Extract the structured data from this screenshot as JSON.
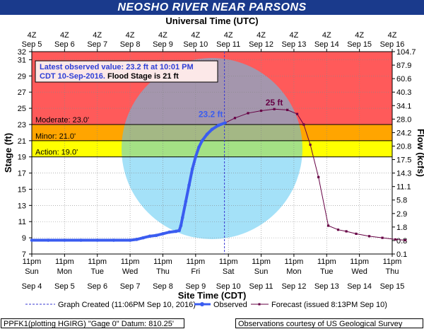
{
  "title": "NEOSHO RIVER NEAR PARSONS",
  "chart_data": {
    "type": "line",
    "top_axis_title": "Universal Time (UTC)",
    "top_ticks": [
      {
        "top": "4Z",
        "bottom": "Sep  5"
      },
      {
        "top": "4Z",
        "bottom": "Sep  6"
      },
      {
        "top": "4Z",
        "bottom": "Sep  7"
      },
      {
        "top": "4Z",
        "bottom": "Sep  8"
      },
      {
        "top": "4Z",
        "bottom": "Sep  9"
      },
      {
        "top": "4Z",
        "bottom": "Sep 10"
      },
      {
        "top": "4Z",
        "bottom": "Sep 11"
      },
      {
        "top": "4Z",
        "bottom": "Sep 12"
      },
      {
        "top": "4Z",
        "bottom": "Sep 13"
      },
      {
        "top": "4Z",
        "bottom": "Sep 14"
      },
      {
        "top": "4Z",
        "bottom": "Sep 15"
      },
      {
        "top": "4Z",
        "bottom": "Sep 16"
      }
    ],
    "bottom_axis_title": "Site Time (CDT)",
    "bottom_ticks": [
      {
        "time": "11pm",
        "day": "Sun",
        "date": "Sep 4"
      },
      {
        "time": "11pm",
        "day": "Mon",
        "date": "Sep 5"
      },
      {
        "time": "11pm",
        "day": "Tue",
        "date": "Sep 6"
      },
      {
        "time": "11pm",
        "day": "Wed",
        "date": "Sep 7"
      },
      {
        "time": "11pm",
        "day": "Thu",
        "date": "Sep 8"
      },
      {
        "time": "11pm",
        "day": "Fri",
        "date": "Sep 9"
      },
      {
        "time": "11pm",
        "day": "Sat",
        "date": "Sep 10"
      },
      {
        "time": "11pm",
        "day": "Sun",
        "date": "Sep 11"
      },
      {
        "time": "11pm",
        "day": "Mon",
        "date": "Sep 12"
      },
      {
        "time": "11pm",
        "day": "Tue",
        "date": "Sep 13"
      },
      {
        "time": "11pm",
        "day": "Wed",
        "date": "Sep 14"
      },
      {
        "time": "11pm",
        "day": "Thu",
        "date": "Sep 15"
      }
    ],
    "y_left_label": "Stage (ft)",
    "y_left_ticks": [
      7,
      9,
      11,
      13,
      15,
      17,
      19,
      21,
      23,
      25,
      27,
      29,
      31,
      32
    ],
    "ylim": [
      7,
      32
    ],
    "y_right_label": "Flow (kcfs)",
    "y_right_ticks": [
      {
        "stage": 7,
        "label": "0.1"
      },
      {
        "stage": 9,
        "label": "0.8"
      },
      {
        "stage": 11,
        "label": "1.8"
      },
      {
        "stage": 13,
        "label": "2.9"
      },
      {
        "stage": 15,
        "label": "5.8"
      },
      {
        "stage": 17,
        "label": "11.1"
      },
      {
        "stage": 19,
        "label": "14.3"
      },
      {
        "stage": 21,
        "label": "17.5"
      },
      {
        "stage": 23,
        "label": "20.8"
      },
      {
        "stage": 25,
        "label": "24.2"
      },
      {
        "stage": 27,
        "label": "28.0"
      },
      {
        "stage": 29,
        "label": "34.1"
      },
      {
        "stage": 31,
        "label": "40.3"
      },
      {
        "stage": 32,
        "label": "60.6"
      },
      {
        "stage": 33,
        "label": "87.9"
      },
      {
        "stage": 34,
        "label": "104.7"
      }
    ],
    "flood_categories": [
      {
        "name": "Action",
        "label": "Action: 19.0'",
        "from": 19,
        "to": 21,
        "color": "#ffff00"
      },
      {
        "name": "Minor",
        "label": "Minor: 21.0'",
        "from": 21,
        "to": 23,
        "color": "#ffa500"
      },
      {
        "name": "Moderate",
        "label": "Moderate: 23.0'",
        "from": 23,
        "to": 32,
        "color": "#ff5a5a"
      }
    ],
    "grid": true,
    "observed": {
      "name": "Observed",
      "color": "#3a5cf0",
      "points": [
        [
          0,
          8.7
        ],
        [
          0.5,
          8.7
        ],
        [
          1,
          8.7
        ],
        [
          1.5,
          8.7
        ],
        [
          2,
          8.7
        ],
        [
          2.5,
          8.7
        ],
        [
          3,
          8.7
        ],
        [
          3.2,
          8.8
        ],
        [
          3.4,
          9.0
        ],
        [
          3.6,
          9.2
        ],
        [
          3.8,
          9.3
        ],
        [
          4.0,
          9.5
        ],
        [
          4.2,
          9.7
        ],
        [
          4.4,
          9.8
        ],
        [
          4.5,
          9.9
        ],
        [
          4.55,
          10.5
        ],
        [
          4.6,
          11.5
        ],
        [
          4.7,
          13.5
        ],
        [
          4.8,
          15.5
        ],
        [
          4.9,
          17.5
        ],
        [
          5.0,
          19.0
        ],
        [
          5.1,
          20.2
        ],
        [
          5.2,
          21.0
        ],
        [
          5.35,
          21.8
        ],
        [
          5.5,
          22.4
        ],
        [
          5.7,
          22.9
        ],
        [
          5.9,
          23.2
        ]
      ]
    },
    "forecast": {
      "name": "Forecast (issued 8:13PM Sep 10)",
      "color": "#660044",
      "points": [
        [
          5.9,
          23.2
        ],
        [
          6.2,
          23.8
        ],
        [
          6.6,
          24.4
        ],
        [
          7.0,
          24.7
        ],
        [
          7.4,
          24.9
        ],
        [
          7.8,
          24.8
        ],
        [
          8.1,
          24.3
        ],
        [
          8.3,
          23.0
        ],
        [
          8.5,
          20.5
        ],
        [
          8.75,
          16.5
        ],
        [
          9.05,
          10.5
        ],
        [
          9.35,
          10.0
        ],
        [
          9.6,
          9.8
        ],
        [
          9.9,
          9.5
        ],
        [
          10.3,
          9.2
        ],
        [
          10.7,
          9.0
        ],
        [
          11.1,
          8.8
        ],
        [
          11.4,
          8.7
        ]
      ]
    },
    "graph_created": {
      "label": "Graph Created (11:06PM Sep 10, 2016)",
      "x": 5.88
    },
    "crest_label": {
      "text": "25 ft",
      "x": 7.4,
      "y": 24.9
    },
    "current_label": {
      "text": "23.2 ft",
      "x": 5.9,
      "y": 23.2
    },
    "info_box": {
      "line1": "Latest observed value: 23.2 ft at 10:01 PM",
      "line2a": "CDT 10-Sep-2016.",
      "line2b": " Flood Stage is 21 ft"
    },
    "legend_placement": "bottom",
    "colors": {
      "plot_bg": "#ffffff",
      "grid": "#888888",
      "title_bg": "#1a3a8c",
      "observed": "#3a5cf0",
      "forecast": "#660044",
      "info_text": "#2c3ed6"
    }
  },
  "footer": {
    "left": "PPFK1(plotting HGIRG) \"Gage 0\" Datum: 810.25'",
    "right": "Observations courtesy of US Geological Survey"
  }
}
